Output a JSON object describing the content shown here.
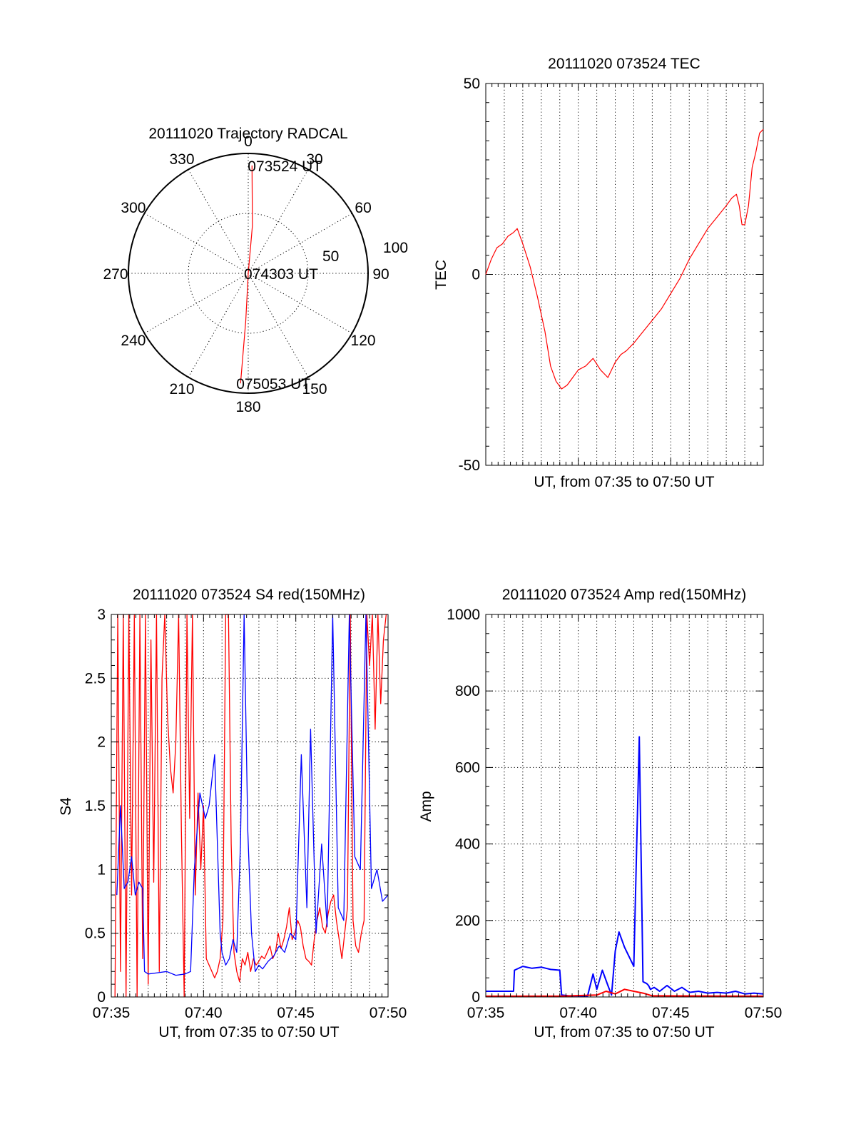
{
  "chart_data": [
    {
      "type": "polar",
      "title": "20111020 Trajectory RADCAL",
      "angle_labels": [
        "0",
        "30",
        "60",
        "90",
        "120",
        "150",
        "180",
        "210",
        "240",
        "270",
        "300",
        "330"
      ],
      "radius_labels": [
        "50",
        "100"
      ],
      "rmax": 100,
      "track": [
        {
          "az": 2,
          "r": 90,
          "time": "073524 UT"
        },
        {
          "az": 5,
          "r": 40
        },
        {
          "az": 20,
          "r": 0,
          "time": "074303 UT"
        },
        {
          "az": 183,
          "r": 40
        },
        {
          "az": 184,
          "r": 92,
          "time": "075053 UT"
        }
      ],
      "track_color": "#ff0000",
      "grid": true
    },
    {
      "type": "line",
      "title": "20111020 073524 TEC",
      "xlabel": "UT, from 07:35 to 07:50 UT",
      "ylabel": "TEC",
      "xlim": [
        0,
        15
      ],
      "ylim": [
        -50,
        50
      ],
      "yticks": [
        "-50",
        "0",
        "50"
      ],
      "xticks": [],
      "grid": true,
      "series": [
        {
          "color": "#ff0000",
          "x": [
            0,
            0.3,
            0.6,
            0.9,
            1.2,
            1.5,
            1.7,
            2.0,
            2.4,
            2.8,
            3.2,
            3.5,
            3.8,
            4.1,
            4.4,
            4.7,
            5.0,
            5.4,
            5.8,
            6.2,
            6.6,
            7.0,
            7.3,
            7.6,
            8.0,
            8.5,
            9.0,
            9.5,
            10.0,
            10.5,
            11.0,
            11.5,
            12.0,
            12.5,
            13.0,
            13.3,
            13.55,
            13.7,
            13.85,
            14.0,
            14.2,
            14.4,
            14.6,
            14.8,
            15.0
          ],
          "y": [
            0,
            4,
            7,
            8,
            10,
            11,
            12,
            8,
            2,
            -6,
            -15,
            -24,
            -28,
            -30,
            -29,
            -27,
            -25,
            -24,
            -22,
            -25,
            -27,
            -23,
            -21,
            -20,
            -18,
            -15,
            -12,
            -9,
            -5,
            -1,
            4,
            8,
            12,
            15,
            18,
            20,
            21,
            18,
            13,
            13,
            18,
            28,
            32,
            37,
            38
          ]
        }
      ]
    },
    {
      "type": "line",
      "title": "20111020 073524 S4 red(150MHz)",
      "xlabel": "UT, from 07:35 to 07:50 UT",
      "ylabel": "S4",
      "xlim": [
        0,
        15
      ],
      "ylim": [
        0,
        3
      ],
      "xticks": [
        "07:35",
        "07:40",
        "07:45",
        "07:50"
      ],
      "yticks": [
        "0",
        "0.5",
        "1",
        "1.5",
        "2",
        "2.5",
        "3"
      ],
      "grid": true,
      "series": [
        {
          "color": "#ff0000",
          "x": [
            0.2,
            0.35,
            0.5,
            0.65,
            0.8,
            0.95,
            1.1,
            1.25,
            1.4,
            1.55,
            1.7,
            1.85,
            2.0,
            2.15,
            2.3,
            2.45,
            2.6,
            2.75,
            2.9,
            3.05,
            3.2,
            3.35,
            3.5,
            3.65,
            3.8,
            3.95,
            4.1,
            4.25,
            4.4,
            4.55,
            4.7,
            4.85,
            5.0,
            5.15,
            5.3,
            5.45,
            5.6,
            5.75,
            5.9,
            6.05,
            6.2,
            6.35,
            6.5,
            6.65,
            6.8,
            6.95,
            7.1,
            7.25,
            7.4,
            7.55,
            7.7,
            7.85,
            8.0,
            8.15,
            8.3,
            8.45,
            8.6,
            8.75,
            8.9,
            9.05,
            9.2,
            9.35,
            9.5,
            9.65,
            9.8,
            9.95,
            10.1,
            10.25,
            10.4,
            10.55,
            10.7,
            10.85,
            11.0,
            11.15,
            11.3,
            11.45,
            11.6,
            11.75,
            11.9,
            12.05,
            12.2,
            12.35,
            12.5,
            12.65,
            12.8,
            12.95,
            13.1,
            13.25,
            13.4,
            13.55,
            13.7,
            13.85,
            14.0,
            14.15,
            14.3,
            14.45,
            14.6,
            14.75,
            14.9
          ],
          "y": [
            0,
            3,
            0.2,
            3,
            0,
            3,
            0.8,
            3,
            0,
            3,
            0.3,
            3,
            0.1,
            2.8,
            0.9,
            3,
            0.2,
            2.5,
            3,
            2.2,
            1.8,
            1.6,
            2.0,
            3,
            1.3,
            0,
            3,
            1.4,
            3,
            0.8,
            1.6,
            1.0,
            1.5,
            0.3,
            0.25,
            0.2,
            0.15,
            0.2,
            0.3,
            0.6,
            3,
            3,
            1.2,
            0.35,
            0.2,
            0.12,
            0.3,
            0.25,
            0.35,
            0.2,
            0.3,
            0.25,
            0.28,
            0.32,
            0.3,
            0.35,
            0.4,
            0.3,
            0.35,
            0.5,
            0.38,
            0.45,
            0.55,
            0.7,
            0.45,
            0.5,
            0.6,
            0.55,
            0.4,
            0.3,
            0.28,
            0.25,
            0.45,
            0.6,
            0.7,
            0.55,
            0.5,
            0.65,
            0.75,
            0.8,
            0.6,
            0.45,
            0.3,
            0.5,
            0.7,
            3,
            0.6,
            0.4,
            0.35,
            0.5,
            0.6,
            3,
            2.6,
            3,
            2.1,
            3,
            2.3,
            2.8,
            3
          ]
        },
        {
          "color": "#0000ff",
          "x": [
            0.3,
            0.5,
            0.7,
            0.9,
            1.1,
            1.3,
            1.5,
            1.7,
            1.8,
            2.0,
            2.5,
            3.0,
            3.5,
            4.0,
            4.3,
            4.5,
            4.8,
            5.1,
            5.3,
            5.6,
            5.9,
            6.0,
            6.2,
            6.4,
            6.6,
            6.8,
            7.0,
            7.2,
            7.4,
            7.6,
            7.8,
            8.0,
            8.2,
            8.5,
            8.8,
            9.1,
            9.4,
            9.7,
            10.0,
            10.3,
            10.6,
            10.8,
            11.1,
            11.4,
            11.7,
            12.0,
            12.3,
            12.6,
            12.9,
            13.2,
            13.5,
            13.8,
            14.1,
            14.4,
            14.7,
            15.0
          ],
          "y": [
            0.8,
            1.5,
            0.85,
            0.9,
            1.1,
            0.8,
            0.9,
            0.85,
            0.2,
            0.18,
            0.19,
            0.2,
            0.17,
            0.18,
            0.2,
            1.0,
            1.6,
            1.4,
            1.5,
            1.9,
            0.5,
            0.35,
            0.25,
            0.3,
            0.45,
            0.35,
            1.2,
            3,
            1.3,
            0.5,
            0.2,
            0.25,
            0.22,
            0.28,
            0.32,
            0.4,
            0.35,
            0.5,
            0.45,
            1.9,
            0.7,
            2.1,
            0.5,
            1.2,
            0.55,
            3,
            0.7,
            0.6,
            3,
            1.1,
            1.0,
            3,
            0.85,
            1.0,
            0.75,
            0.8
          ]
        }
      ]
    },
    {
      "type": "line",
      "title": "20111020 073524 Amp red(150MHz)",
      "xlabel": "UT, from 07:35 to 07:50 UT",
      "ylabel": "Amp",
      "xlim": [
        0,
        15
      ],
      "ylim": [
        0,
        1000
      ],
      "xticks": [
        "07:35",
        "07:40",
        "07:45",
        "07:50"
      ],
      "yticks": [
        "0",
        "200",
        "400",
        "600",
        "800",
        "1000"
      ],
      "grid": true,
      "series": [
        {
          "color": "#0000ff",
          "x": [
            0,
            1.5,
            1.55,
            2.0,
            2.5,
            3.0,
            3.5,
            4.0,
            4.1,
            4.5,
            5.0,
            5.5,
            5.8,
            6.0,
            6.3,
            6.6,
            6.8,
            7.0,
            7.2,
            7.5,
            8.0,
            8.3,
            8.5,
            8.7,
            8.8,
            8.9,
            9.1,
            9.4,
            9.8,
            10.2,
            10.6,
            11.0,
            11.5,
            12.0,
            12.5,
            13.0,
            13.5,
            14.0,
            14.5,
            15.0
          ],
          "y": [
            15,
            15,
            70,
            80,
            75,
            78,
            72,
            70,
            5,
            3,
            3,
            2,
            60,
            20,
            70,
            30,
            5,
            120,
            170,
            130,
            80,
            680,
            40,
            35,
            30,
            20,
            25,
            15,
            30,
            15,
            25,
            12,
            15,
            10,
            12,
            10,
            15,
            8,
            10,
            8
          ]
        },
        {
          "color": "#ff0000",
          "x": [
            0,
            1.5,
            4.0,
            6.0,
            6.5,
            7.0,
            7.5,
            8.0,
            8.5,
            9.0,
            15.0
          ],
          "y": [
            2,
            2,
            2,
            5,
            15,
            8,
            20,
            15,
            10,
            3,
            2
          ]
        }
      ]
    }
  ]
}
